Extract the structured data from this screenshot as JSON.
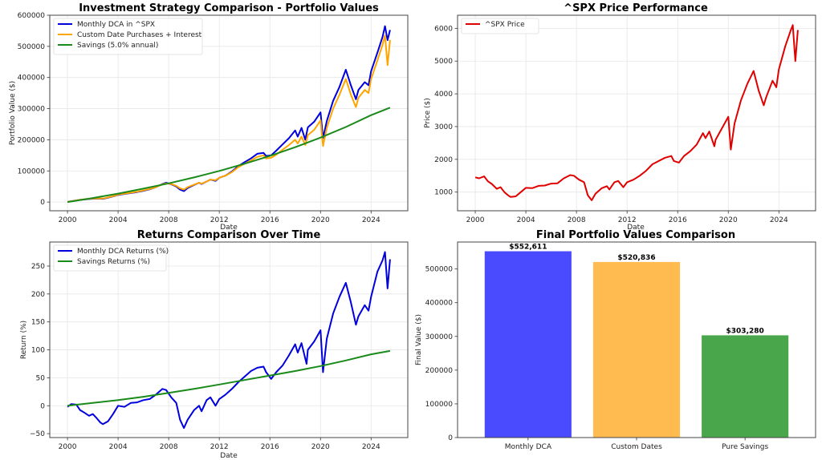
{
  "chart_data": [
    {
      "id": "portfolio",
      "type": "line",
      "title": "Investment Strategy Comparison - Portfolio Values",
      "xlabel": "Date",
      "ylabel": "Portfolio Value ($)",
      "xlim": [
        1998.6,
        2026.9
      ],
      "ylim": [
        -28000,
        600000
      ],
      "xticks": [
        2000,
        2004,
        2008,
        2012,
        2016,
        2020,
        2024
      ],
      "xtick_labels": [
        "2000",
        "2004",
        "2008",
        "2012",
        "2016",
        "2020",
        "2024"
      ],
      "yticks": [
        0,
        100000,
        200000,
        300000,
        400000,
        500000,
        600000
      ],
      "ytick_labels": [
        "0",
        "100000",
        "200000",
        "300000",
        "400000",
        "500000",
        "600000"
      ],
      "grid": true,
      "legend_position": "top-left",
      "series": [
        {
          "name": "Monthly DCA in ^SPX",
          "color": "#0000dd",
          "x": [
            2000,
            2000.5,
            2001,
            2001.5,
            2002,
            2002.5,
            2002.8,
            2003.2,
            2003.7,
            2004,
            2004.5,
            2005,
            2005.5,
            2006,
            2006.5,
            2007,
            2007.5,
            2007.8,
            2008.2,
            2008.6,
            2008.9,
            2009.2,
            2009.5,
            2010,
            2010.4,
            2010.6,
            2011,
            2011.3,
            2011.7,
            2012,
            2012.5,
            2013,
            2013.5,
            2014,
            2014.5,
            2015,
            2015.5,
            2015.7,
            2016.1,
            2016.5,
            2017,
            2017.5,
            2018,
            2018.2,
            2018.5,
            2018.8,
            2019,
            2019.5,
            2020,
            2020.2,
            2020.5,
            2021,
            2021.5,
            2022,
            2022.4,
            2022.8,
            2023,
            2023.5,
            2023.8,
            2024,
            2024.5,
            2024.9,
            2025.1,
            2025.3,
            2025.5
          ],
          "y": [
            500,
            4000,
            7000,
            9000,
            10500,
            11000,
            10000,
            14000,
            19000,
            23000,
            26000,
            29000,
            32000,
            36000,
            41000,
            48000,
            58000,
            62000,
            57000,
            50000,
            40000,
            35000,
            45000,
            55000,
            62000,
            58000,
            66000,
            72000,
            68000,
            78000,
            85000,
            98000,
            115000,
            128000,
            140000,
            155000,
            158000,
            148000,
            150000,
            165000,
            185000,
            205000,
            230000,
            210000,
            238000,
            200000,
            240000,
            258000,
            288000,
            205000,
            260000,
            325000,
            370000,
            425000,
            375000,
            330000,
            360000,
            385000,
            375000,
            420000,
            480000,
            530000,
            565000,
            520000,
            552611
          ]
        },
        {
          "name": "Custom Date Purchases + Interest",
          "color": "#ffa500",
          "x": [
            2000,
            2000.5,
            2001,
            2001.5,
            2002,
            2002.5,
            2002.8,
            2003.2,
            2003.7,
            2004,
            2004.5,
            2005,
            2005.5,
            2006,
            2006.5,
            2007,
            2007.5,
            2007.8,
            2008.2,
            2008.6,
            2008.9,
            2009.2,
            2009.5,
            2010,
            2010.4,
            2010.6,
            2011,
            2011.3,
            2011.7,
            2012,
            2012.5,
            2013,
            2013.5,
            2014,
            2014.5,
            2015,
            2015.5,
            2015.7,
            2016.1,
            2016.5,
            2017,
            2017.5,
            2018,
            2018.2,
            2018.5,
            2018.8,
            2019,
            2019.5,
            2020,
            2020.2,
            2020.5,
            2021,
            2021.5,
            2022,
            2022.4,
            2022.8,
            2023,
            2023.5,
            2023.8,
            2024,
            2024.5,
            2024.9,
            2025.1,
            2025.3,
            2025.5
          ],
          "y": [
            500,
            4000,
            7500,
            9500,
            11000,
            12000,
            11000,
            15000,
            20000,
            24000,
            27000,
            30000,
            33000,
            37000,
            42000,
            48000,
            57000,
            60000,
            58000,
            52000,
            44000,
            40000,
            48000,
            56000,
            62000,
            59000,
            66000,
            72000,
            70000,
            78000,
            85000,
            96000,
            112000,
            123000,
            133000,
            145000,
            150000,
            140000,
            142000,
            152000,
            168000,
            183000,
            200000,
            188000,
            210000,
            183000,
            215000,
            232000,
            262000,
            180000,
            238000,
            300000,
            345000,
            395000,
            345000,
            305000,
            335000,
            360000,
            350000,
            395000,
            455000,
            505000,
            535000,
            440000,
            520836
          ]
        },
        {
          "name": "Savings (5.0% annual)",
          "color": "#1a8a1a",
          "x": [
            2000,
            2002,
            2004,
            2006,
            2008,
            2010,
            2012,
            2014,
            2016,
            2018,
            2020,
            2022,
            2024,
            2025.5
          ],
          "y": [
            0,
            13000,
            27000,
            43000,
            60000,
            79000,
            100000,
            123000,
            148000,
            176000,
            207000,
            241000,
            279000,
            303280
          ]
        }
      ]
    },
    {
      "id": "price",
      "type": "line",
      "title": "^SPX Price Performance",
      "xlabel": "Date",
      "ylabel": "Price ($)",
      "xlim": [
        1998.6,
        2026.9
      ],
      "ylim": [
        430,
        6400
      ],
      "xticks": [
        2000,
        2004,
        2008,
        2012,
        2016,
        2020,
        2024
      ],
      "xtick_labels": [
        "2000",
        "2004",
        "2008",
        "2012",
        "2016",
        "2020",
        "2024"
      ],
      "yticks": [
        1000,
        2000,
        3000,
        4000,
        5000,
        6000
      ],
      "ytick_labels": [
        "1000",
        "2000",
        "3000",
        "4000",
        "5000",
        "6000"
      ],
      "grid": true,
      "legend_position": "top-left",
      "series": [
        {
          "name": "^SPX Price",
          "color": "#e00000",
          "x": [
            2000,
            2000.3,
            2000.7,
            2001,
            2001.3,
            2001.7,
            2002,
            2002.3,
            2002.6,
            2002.8,
            2003.2,
            2003.6,
            2004,
            2004.5,
            2005,
            2005.5,
            2006,
            2006.5,
            2007,
            2007.5,
            2007.8,
            2008.2,
            2008.6,
            2008.9,
            2009.2,
            2009.5,
            2010,
            2010.4,
            2010.6,
            2011,
            2011.3,
            2011.7,
            2012,
            2012.5,
            2013,
            2013.5,
            2014,
            2014.5,
            2015,
            2015.5,
            2015.7,
            2016.1,
            2016.5,
            2017,
            2017.5,
            2018,
            2018.2,
            2018.5,
            2018.9,
            2019,
            2019.5,
            2020,
            2020.2,
            2020.5,
            2021,
            2021.5,
            2022,
            2022.4,
            2022.8,
            2023,
            2023.5,
            2023.8,
            2024,
            2024.5,
            2024.9,
            2025.1,
            2025.3,
            2025.5
          ],
          "y": [
            1450,
            1420,
            1480,
            1330,
            1250,
            1100,
            1150,
            1000,
            900,
            850,
            870,
            1000,
            1130,
            1120,
            1190,
            1200,
            1260,
            1270,
            1420,
            1520,
            1500,
            1380,
            1300,
            900,
            750,
            950,
            1120,
            1180,
            1080,
            1300,
            1340,
            1150,
            1300,
            1380,
            1500,
            1650,
            1850,
            1950,
            2050,
            2100,
            1950,
            1900,
            2100,
            2250,
            2450,
            2800,
            2650,
            2850,
            2400,
            2600,
            2950,
            3300,
            2300,
            3100,
            3800,
            4300,
            4700,
            4100,
            3650,
            3900,
            4400,
            4200,
            4750,
            5450,
            5900,
            6100,
            5000,
            5950
          ]
        }
      ]
    },
    {
      "id": "returns",
      "type": "line",
      "title": "Returns Comparison Over Time",
      "xlabel": "Date",
      "ylabel": "Return (%)",
      "xlim": [
        1998.6,
        2026.9
      ],
      "ylim": [
        -57,
        293
      ],
      "xticks": [
        2000,
        2004,
        2008,
        2012,
        2016,
        2020,
        2024
      ],
      "xtick_labels": [
        "2000",
        "2004",
        "2008",
        "2012",
        "2016",
        "2020",
        "2024"
      ],
      "yticks": [
        -50,
        0,
        50,
        100,
        150,
        200,
        250
      ],
      "ytick_labels": [
        "−50",
        "0",
        "50",
        "100",
        "150",
        "200",
        "250"
      ],
      "grid": true,
      "legend_position": "top-left",
      "series": [
        {
          "name": "Monthly DCA Returns (%)",
          "color": "#0000dd",
          "x": [
            2000,
            2000.3,
            2000.7,
            2001,
            2001.3,
            2001.7,
            2002,
            2002.3,
            2002.6,
            2002.8,
            2003.2,
            2003.6,
            2004,
            2004.5,
            2005,
            2005.5,
            2006,
            2006.5,
            2007,
            2007.5,
            2007.8,
            2008.2,
            2008.6,
            2008.9,
            2009.2,
            2009.5,
            2010,
            2010.4,
            2010.6,
            2011,
            2011.3,
            2011.7,
            2012,
            2012.5,
            2013,
            2013.5,
            2014,
            2014.5,
            2015,
            2015.5,
            2015.7,
            2016.1,
            2016.5,
            2017,
            2017.5,
            2018,
            2018.2,
            2018.5,
            2018.9,
            2019,
            2019.5,
            2020,
            2020.2,
            2020.5,
            2021,
            2021.5,
            2022,
            2022.4,
            2022.8,
            2023,
            2023.5,
            2023.8,
            2024,
            2024.5,
            2024.9,
            2025.1,
            2025.3,
            2025.5
          ],
          "y": [
            -2,
            3,
            2,
            -8,
            -12,
            -18,
            -15,
            -22,
            -30,
            -33,
            -28,
            -15,
            0,
            -2,
            5,
            6,
            10,
            12,
            20,
            30,
            28,
            15,
            5,
            -25,
            -40,
            -25,
            -8,
            0,
            -10,
            10,
            15,
            0,
            12,
            20,
            30,
            42,
            52,
            62,
            68,
            70,
            60,
            48,
            60,
            72,
            90,
            110,
            95,
            112,
            75,
            100,
            115,
            135,
            60,
            120,
            165,
            195,
            220,
            185,
            145,
            160,
            180,
            170,
            195,
            240,
            260,
            275,
            210,
            262
          ]
        },
        {
          "name": "Savings Returns (%)",
          "color": "#1a8a1a",
          "x": [
            2000,
            2002,
            2004,
            2006,
            2008,
            2010,
            2012,
            2014,
            2016,
            2018,
            2020,
            2022,
            2024,
            2025.5
          ],
          "y": [
            0,
            5,
            10,
            16,
            23,
            30,
            38,
            46,
            54,
            62,
            71,
            81,
            92,
            98
          ]
        }
      ]
    },
    {
      "id": "final",
      "type": "bar",
      "title": "Final Portfolio Values Comparison",
      "xlabel": "",
      "ylabel": "Final Value ($)",
      "ylim": [
        0,
        580000
      ],
      "yticks": [
        0,
        100000,
        200000,
        300000,
        400000,
        500000
      ],
      "ytick_labels": [
        "0",
        "100000",
        "200000",
        "300000",
        "400000",
        "500000"
      ],
      "grid": false,
      "categories": [
        "Monthly DCA",
        "Custom Dates",
        "Pure Savings"
      ],
      "values": [
        552611,
        520836,
        303280
      ],
      "data_labels": [
        "$552,611",
        "$520,836",
        "$303,280"
      ],
      "colors": [
        "#4a4aff",
        "#ffbb4f",
        "#4aa64a"
      ]
    }
  ]
}
